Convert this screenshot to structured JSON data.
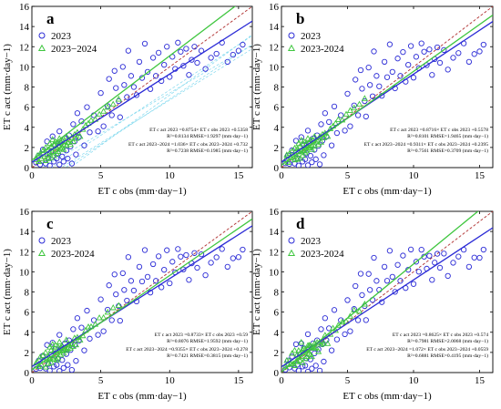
{
  "chart_data": [
    {
      "type": "scatter",
      "panel": "a",
      "xlabel": "ET c obs (mm·day−1)",
      "ylabel": "ET c act (mm·day−1)",
      "xlim": [
        0,
        16
      ],
      "ylim": [
        0,
        16
      ],
      "xticks": [
        0,
        5,
        10,
        15
      ],
      "yticks": [
        0,
        2,
        4,
        6,
        8,
        10,
        12,
        14,
        16
      ],
      "legend_position": "top-left",
      "extra_lines": "cyan",
      "series": [
        {
          "name": "2023",
          "marker": "circle",
          "color": "#2b2bd6",
          "fit": {
            "slope": 0.8754,
            "intercept": 0.5358
          }
        },
        {
          "name": "2023−2024",
          "marker": "triangle",
          "color": "#3fc63f",
          "fit": {
            "slope": 1.036,
            "intercept": 0.732
          }
        }
      ],
      "equations": [
        "ET c act 2023 =0.8754× ET c obs 2023 +0.5358",
        "R²=0.8134  RMSE=1.9297 (mm·day−1)",
        "ET c act 2023−2024 =1.036× ET c obs 2023−2024 +0.732",
        "R²=0.7238  RMSE=0.1985 (mm·day−1)"
      ]
    },
    {
      "type": "scatter",
      "panel": "b",
      "xlabel": "ET c obs (mm·day−1)",
      "ylabel": "ET c act (mm·day−1)",
      "xlim": [
        0,
        16
      ],
      "ylim": [
        0,
        16
      ],
      "xticks": [
        0,
        5,
        10,
        15
      ],
      "yticks": [
        0,
        2,
        4,
        6,
        8,
        10,
        12,
        14,
        16
      ],
      "legend_position": "top-left",
      "series": [
        {
          "name": "2023",
          "marker": "circle",
          "color": "#2b2bd6",
          "fit": {
            "slope": 0.8716,
            "intercept": 0.5578
          }
        },
        {
          "name": "2023-2024",
          "marker": "triangle",
          "color": "#3fc63f",
          "fit": {
            "slope": 0.9311,
            "intercept": 0.2395
          }
        }
      ],
      "equations": [
        "ET c act 2023 =0.8716× ET c obs 2023 +0.5578",
        "R²=0.8101  RMSE=1.9465 (mm·day−1)",
        "ET c act 2023−2024 =0.9311× ET c obs 2023−2024 +0.2395",
        "R²=0.7561  RMSE=0.3709 (mm·day−1)"
      ]
    },
    {
      "type": "scatter",
      "panel": "c",
      "xlabel": "ET c obs (mm·day−1)",
      "ylabel": "ET c act (mm·day−1)",
      "xlim": [
        0,
        16
      ],
      "ylim": [
        0,
        16
      ],
      "xticks": [
        0,
        5,
        10,
        15
      ],
      "yticks": [
        0,
        2,
        4,
        6,
        8,
        10,
        12,
        14,
        16
      ],
      "legend_position": "top-left",
      "series": [
        {
          "name": "2023",
          "marker": "circle",
          "color": "#2b2bd6",
          "fit": {
            "slope": 0.8733,
            "intercept": 0.59
          }
        },
        {
          "name": "2023-2024",
          "marker": "triangle",
          "color": "#3fc63f",
          "fit": {
            "slope": 0.9355,
            "intercept": 0.278
          }
        }
      ],
      "equations": [
        "ET c act 2023 =0.8733× ET c obs 2023 +0.59",
        "R²=0.8076  RMSE=1.9592 (mm·day−1)",
        "ET c act 2023−2024 =0.9355× ET c obs 2023−2024 +0.278",
        "R²=0.7421  RMSE=0.3815 (mm·day−1)"
      ]
    },
    {
      "type": "scatter",
      "panel": "d",
      "xlabel": "ET c obs (mm·day−1)",
      "ylabel": "ET c act (mm·day−1)",
      "xlim": [
        0,
        16
      ],
      "ylim": [
        0,
        16
      ],
      "xticks": [
        0,
        5,
        10,
        15
      ],
      "yticks": [
        0,
        2,
        4,
        6,
        8,
        10,
        12,
        14,
        16
      ],
      "legend_position": "top-left",
      "series": [
        {
          "name": "2023",
          "marker": "circle",
          "color": "#2b2bd6",
          "fit": {
            "slope": 0.8625,
            "intercept": 0.574
          }
        },
        {
          "name": "2023-2024",
          "marker": "triangle",
          "color": "#3fc63f",
          "fit": {
            "slope": 1.072,
            "intercept": 0.0559
          }
        }
      ],
      "equations": [
        "ET c act 2023 =0.8625× ET c obs 2023 +0.574",
        "R²=0.7981  RMSE=2.0068 (mm·day−1)",
        "ET c act 2023−2024 =1.072× ET c obs 2023−2024 +0.0559",
        "R²=0.6881  RMSE=0.4195 (mm·day−1)"
      ]
    }
  ],
  "scatter_points": {
    "circles_2023": [
      [
        0.3,
        0.5
      ],
      [
        0.5,
        1.2
      ],
      [
        0.6,
        0.3
      ],
      [
        0.8,
        1.8
      ],
      [
        1.0,
        0.4
      ],
      [
        1.1,
        2.6
      ],
      [
        1.2,
        1.0
      ],
      [
        1.3,
        0.2
      ],
      [
        1.4,
        1.6
      ],
      [
        1.5,
        3.1
      ],
      [
        1.6,
        0.6
      ],
      [
        1.7,
        2.2
      ],
      [
        1.8,
        0.9
      ],
      [
        1.9,
        1.4
      ],
      [
        2.0,
        3.6
      ],
      [
        2.0,
        0.3
      ],
      [
        2.1,
        2.4
      ],
      [
        2.2,
        1.1
      ],
      [
        2.3,
        0.6
      ],
      [
        2.4,
        2.9
      ],
      [
        2.5,
        1.7
      ],
      [
        2.6,
        0.9
      ],
      [
        2.7,
        3.2
      ],
      [
        2.8,
        2.1
      ],
      [
        2.9,
        0.4
      ],
      [
        3.0,
        4.3
      ],
      [
        3.1,
        2.6
      ],
      [
        3.2,
        1.3
      ],
      [
        3.3,
        5.4
      ],
      [
        3.4,
        3.0
      ],
      [
        3.6,
        4.6
      ],
      [
        3.8,
        2.2
      ],
      [
        4.0,
        6.0
      ],
      [
        4.2,
        3.5
      ],
      [
        4.5,
        5.2
      ],
      [
        4.8,
        3.6
      ],
      [
        5.0,
        7.4
      ],
      [
        5.2,
        4.1
      ],
      [
        5.5,
        6.1
      ],
      [
        5.6,
        8.8
      ],
      [
        5.8,
        5.2
      ],
      [
        6.0,
        9.6
      ],
      [
        6.1,
        7.9
      ],
      [
        6.3,
        6.6
      ],
      [
        6.4,
        5.0
      ],
      [
        6.6,
        10.0
      ],
      [
        6.7,
        8.2
      ],
      [
        6.9,
        7.0
      ],
      [
        7.0,
        11.6
      ],
      [
        7.2,
        9.1
      ],
      [
        7.4,
        8.0
      ],
      [
        7.6,
        7.2
      ],
      [
        7.8,
        10.5
      ],
      [
        8.0,
        8.9
      ],
      [
        8.2,
        12.3
      ],
      [
        8.4,
        9.5
      ],
      [
        8.6,
        7.8
      ],
      [
        8.8,
        10.9
      ],
      [
        9.0,
        9.1
      ],
      [
        9.2,
        11.4
      ],
      [
        9.4,
        8.6
      ],
      [
        9.6,
        10.2
      ],
      [
        9.8,
        12.0
      ],
      [
        10.0,
        9.0
      ],
      [
        10.2,
        11.0
      ],
      [
        10.4,
        9.8
      ],
      [
        10.6,
        12.4
      ],
      [
        10.8,
        11.5
      ],
      [
        11.0,
        10.1
      ],
      [
        11.2,
        11.8
      ],
      [
        11.4,
        9.2
      ],
      [
        11.6,
        10.7
      ],
      [
        11.8,
        12.0
      ],
      [
        12.0,
        10.4
      ],
      [
        12.3,
        11.6
      ],
      [
        12.6,
        9.8
      ],
      [
        13.0,
        10.9
      ],
      [
        13.4,
        11.3
      ],
      [
        13.8,
        12.4
      ],
      [
        14.2,
        10.5
      ],
      [
        14.6,
        11.2
      ],
      [
        15.0,
        11.6
      ],
      [
        15.3,
        12.2
      ]
    ],
    "triangles_2023_2024": [
      [
        0.3,
        0.8
      ],
      [
        0.4,
        1.2
      ],
      [
        0.5,
        0.6
      ],
      [
        0.6,
        1.4
      ],
      [
        0.7,
        0.9
      ],
      [
        0.8,
        1.7
      ],
      [
        0.9,
        1.1
      ],
      [
        1.0,
        0.7
      ],
      [
        1.0,
        2.0
      ],
      [
        1.1,
        1.3
      ],
      [
        1.2,
        1.8
      ],
      [
        1.2,
        0.9
      ],
      [
        1.3,
        2.4
      ],
      [
        1.3,
        1.5
      ],
      [
        1.4,
        1.0
      ],
      [
        1.4,
        2.1
      ],
      [
        1.5,
        1.6
      ],
      [
        1.5,
        2.8
      ],
      [
        1.6,
        1.2
      ],
      [
        1.6,
        2.3
      ],
      [
        1.7,
        1.8
      ],
      [
        1.7,
        2.6
      ],
      [
        1.8,
        1.4
      ],
      [
        1.8,
        2.0
      ],
      [
        1.9,
        2.4
      ],
      [
        1.9,
        1.6
      ],
      [
        2.0,
        2.2
      ],
      [
        2.0,
        2.9
      ],
      [
        2.1,
        1.9
      ],
      [
        2.1,
        2.5
      ],
      [
        2.2,
        2.0
      ],
      [
        2.2,
        2.7
      ],
      [
        2.3,
        2.3
      ],
      [
        2.3,
        1.8
      ],
      [
        2.4,
        2.6
      ],
      [
        2.5,
        2.2
      ],
      [
        2.5,
        3.1
      ],
      [
        2.6,
        2.5
      ],
      [
        2.7,
        2.8
      ],
      [
        2.8,
        2.3
      ],
      [
        2.9,
        3.0
      ],
      [
        3.0,
        2.6
      ],
      [
        3.1,
        3.3
      ],
      [
        3.2,
        2.9
      ],
      [
        3.3,
        3.5
      ],
      [
        3.5,
        3.1
      ],
      [
        3.7,
        3.8
      ],
      [
        3.9,
        4.2
      ],
      [
        4.1,
        4.4
      ],
      [
        4.3,
        4.7
      ],
      [
        4.6,
        4.8
      ],
      [
        4.9,
        5.3
      ],
      [
        5.2,
        5.6
      ],
      [
        5.5,
        6.0
      ],
      [
        5.9,
        6.3
      ],
      [
        6.3,
        6.8
      ]
    ]
  }
}
